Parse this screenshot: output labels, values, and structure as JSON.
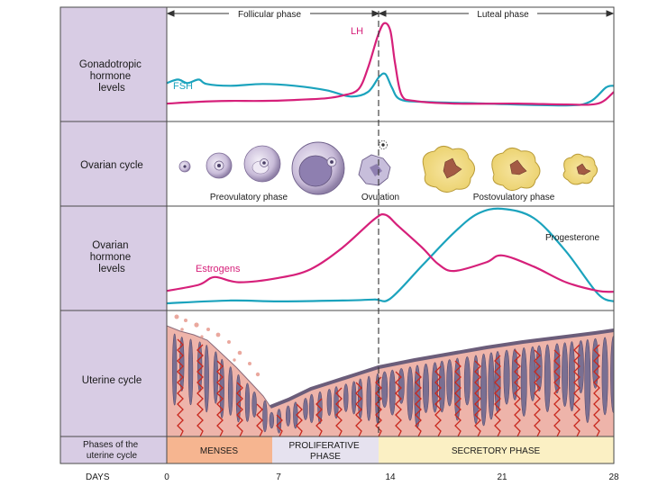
{
  "colors": {
    "sidebar": "#d8cce4",
    "grid": "#4a4a4a",
    "magenta": "#d6207a",
    "cyan": "#1ba3bd",
    "menses": "#f6b590",
    "proliferative": "#e6e2ef",
    "secretory": "#fbf0c4",
    "tissue": "#eeb4aa",
    "vessel": "#c8281e"
  },
  "phases_top": {
    "follicular": "Follicular phase",
    "luteal": "Luteal phase"
  },
  "rows": {
    "gonadotropic": "Gonadotropic hormone levels",
    "ovarian_cycle": "Ovarian cycle",
    "ovarian_hormone": "Ovarian hormone levels",
    "uterine_cycle": "Uterine cycle",
    "phases_of_uterine": "Phases of the uterine cycle"
  },
  "series_labels": {
    "lh": "LH",
    "fsh": "FSH",
    "estrogens": "Estrogens",
    "progesterone": "Progesterone"
  },
  "ovarian_labels": {
    "preovulatory": "Preovulatory phase",
    "ovulation": "Ovulation",
    "postovulatory": "Postovulatory phase"
  },
  "uterine_phases": {
    "menses": "MENSES",
    "proliferative_1": "PROLIFERATIVE",
    "proliferative_2": "PHASE",
    "secretory": "SECRETORY PHASE"
  },
  "days": {
    "label": "DAYS",
    "ticks": [
      "0",
      "7",
      "14",
      "21",
      "28"
    ]
  },
  "curves": {
    "lh": [
      [
        0,
        0.1
      ],
      [
        2,
        0.12
      ],
      [
        4,
        0.13
      ],
      [
        6,
        0.13
      ],
      [
        8,
        0.14
      ],
      [
        10,
        0.16
      ],
      [
        11,
        0.19
      ],
      [
        12,
        0.26
      ],
      [
        12.6,
        0.5
      ],
      [
        13.2,
        0.85
      ],
      [
        13.6,
        1.0
      ],
      [
        14,
        0.92
      ],
      [
        14.3,
        0.55
      ],
      [
        14.7,
        0.2
      ],
      [
        15.5,
        0.13
      ],
      [
        18,
        0.1
      ],
      [
        22,
        0.1
      ],
      [
        25,
        0.09
      ],
      [
        27,
        0.1
      ],
      [
        28,
        0.23
      ]
    ],
    "fsh": [
      [
        0,
        0.33
      ],
      [
        0.7,
        0.37
      ],
      [
        1.3,
        0.33
      ],
      [
        2,
        0.37
      ],
      [
        2.5,
        0.32
      ],
      [
        4,
        0.3
      ],
      [
        6,
        0.32
      ],
      [
        8,
        0.3
      ],
      [
        10,
        0.25
      ],
      [
        11.5,
        0.18
      ],
      [
        12.6,
        0.23
      ],
      [
        13.3,
        0.4
      ],
      [
        13.7,
        0.43
      ],
      [
        14.1,
        0.28
      ],
      [
        14.6,
        0.15
      ],
      [
        16,
        0.12
      ],
      [
        20,
        0.1
      ],
      [
        25,
        0.08
      ],
      [
        26.5,
        0.12
      ],
      [
        27.5,
        0.28
      ],
      [
        28,
        0.3
      ]
    ]
  },
  "hormone_curves": {
    "estrogens": [
      [
        0,
        0.05
      ],
      [
        2,
        0.12
      ],
      [
        3,
        0.21
      ],
      [
        4.5,
        0.15
      ],
      [
        7,
        0.2
      ],
      [
        9,
        0.3
      ],
      [
        11,
        0.55
      ],
      [
        13,
        0.88
      ],
      [
        13.7,
        0.93
      ],
      [
        14.5,
        0.8
      ],
      [
        16,
        0.55
      ],
      [
        17,
        0.36
      ],
      [
        18,
        0.28
      ],
      [
        20,
        0.38
      ],
      [
        21,
        0.46
      ],
      [
        23,
        0.33
      ],
      [
        25,
        0.15
      ],
      [
        27,
        0.05
      ],
      [
        28,
        0.04
      ]
    ],
    "progesterone": [
      [
        0,
        0.0
      ],
      [
        4,
        0.03
      ],
      [
        7,
        0.02
      ],
      [
        11,
        0.03
      ],
      [
        13,
        0.04
      ],
      [
        14,
        0.05
      ],
      [
        16,
        0.4
      ],
      [
        18,
        0.75
      ],
      [
        19.5,
        0.95
      ],
      [
        21,
        1.0
      ],
      [
        23,
        0.9
      ],
      [
        25,
        0.55
      ],
      [
        27,
        0.1
      ],
      [
        28,
        0.02
      ]
    ]
  }
}
